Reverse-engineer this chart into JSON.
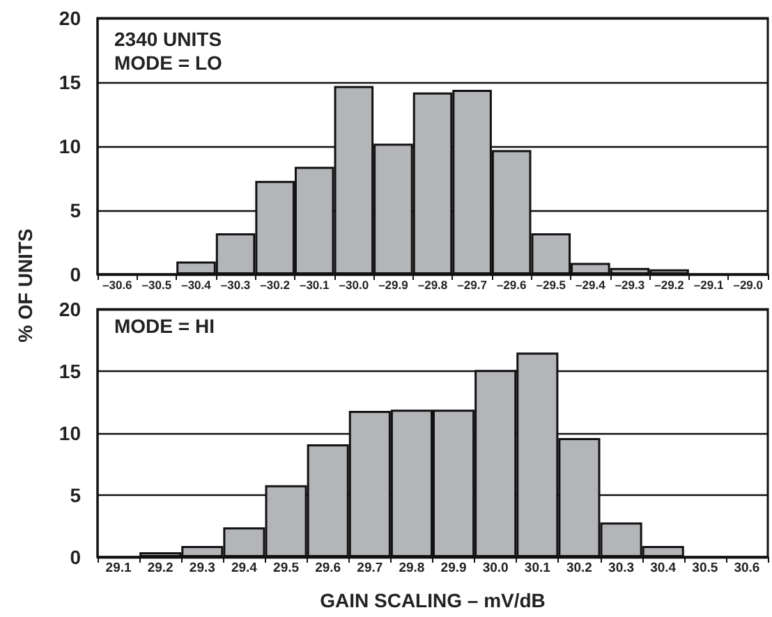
{
  "chart_data": [
    {
      "type": "bar",
      "ylabel": "% OF UNITS",
      "annotations": [
        "2340 UNITS",
        "MODE = LO"
      ],
      "categories": [
        "–30.6",
        "–30.5",
        "–30.4",
        "–30.3",
        "–30.2",
        "–30.1",
        "–30.0",
        "–29.9",
        "–29.8",
        "–29.7",
        "–29.6",
        "–29.5",
        "–29.4",
        "–29.3",
        "–29.2",
        "–29.1",
        "–29.0"
      ],
      "values": [
        0,
        0,
        1.0,
        3.2,
        7.3,
        8.4,
        14.7,
        10.2,
        14.2,
        14.4,
        9.7,
        3.2,
        0.9,
        0.5,
        0.4,
        0,
        0
      ],
      "color": "#b4b5b8",
      "ylim": [
        0,
        20
      ],
      "yticks": [
        0,
        5,
        10,
        15,
        20
      ],
      "grid": "y"
    },
    {
      "type": "bar",
      "xlabel": "GAIN SCALING – mV/dB",
      "annotations": [
        "MODE = HI"
      ],
      "categories": [
        "29.1",
        "29.2",
        "29.3",
        "29.4",
        "29.5",
        "29.6",
        "29.7",
        "29.8",
        "29.9",
        "30.0",
        "30.1",
        "30.2",
        "30.3",
        "30.4",
        "30.5",
        "30.6"
      ],
      "values": [
        0,
        0.4,
        0.9,
        2.4,
        5.8,
        9.1,
        11.8,
        11.9,
        11.9,
        15.1,
        16.5,
        9.6,
        2.8,
        0.9,
        0,
        0
      ],
      "color": "#b4b5b8",
      "ylim": [
        0,
        20
      ],
      "yticks": [
        0,
        5,
        10,
        15,
        20
      ],
      "grid": "y"
    }
  ]
}
